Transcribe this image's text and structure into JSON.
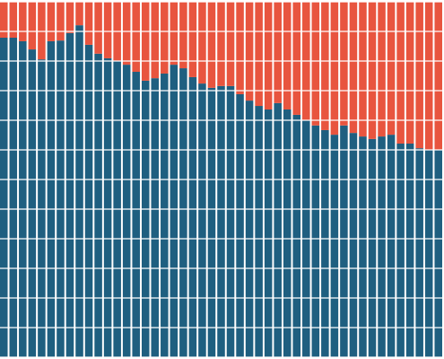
{
  "chart_data": {
    "type": "stacked-bar-100",
    "ylim": [
      0,
      100
    ],
    "yticks": [
      0,
      8.33,
      16.67,
      25,
      33.33,
      41.67,
      50,
      58.33,
      66.67,
      75,
      83.33,
      91.67,
      100
    ],
    "grid": true,
    "series": [
      {
        "color": "#1f5f80",
        "values": [
          89.9,
          89.9,
          88.9,
          86.6,
          83.8,
          88.9,
          89.1,
          91.2,
          93.4,
          87.9,
          85.4,
          84.1,
          83.3,
          82.3,
          80.3,
          77.8,
          78.5,
          79.8,
          82.3,
          81.3,
          78.8,
          77.0,
          75.8,
          76.3,
          76.3,
          74.0,
          72.2,
          70.7,
          69.7,
          71.5,
          69.7,
          68.2,
          66.7,
          65.2,
          63.9,
          62.6,
          65.2,
          63.1,
          62.1,
          61.4,
          62.1,
          62.6,
          60.1,
          60.1,
          58.8,
          58.3,
          58.3
        ]
      },
      {
        "color": "#e8553f",
        "values": [
          10.1,
          10.1,
          11.1,
          13.4,
          16.2,
          11.1,
          10.9,
          8.8,
          6.6,
          12.1,
          14.6,
          15.9,
          16.7,
          17.7,
          19.7,
          22.2,
          21.5,
          20.2,
          17.7,
          18.7,
          21.2,
          23.0,
          24.2,
          23.7,
          23.7,
          26.0,
          27.8,
          29.3,
          30.3,
          28.5,
          30.3,
          31.8,
          33.3,
          34.8,
          36.1,
          37.4,
          34.8,
          36.9,
          37.9,
          38.6,
          37.9,
          37.4,
          39.9,
          39.9,
          41.2,
          41.7,
          41.7
        ]
      }
    ]
  }
}
